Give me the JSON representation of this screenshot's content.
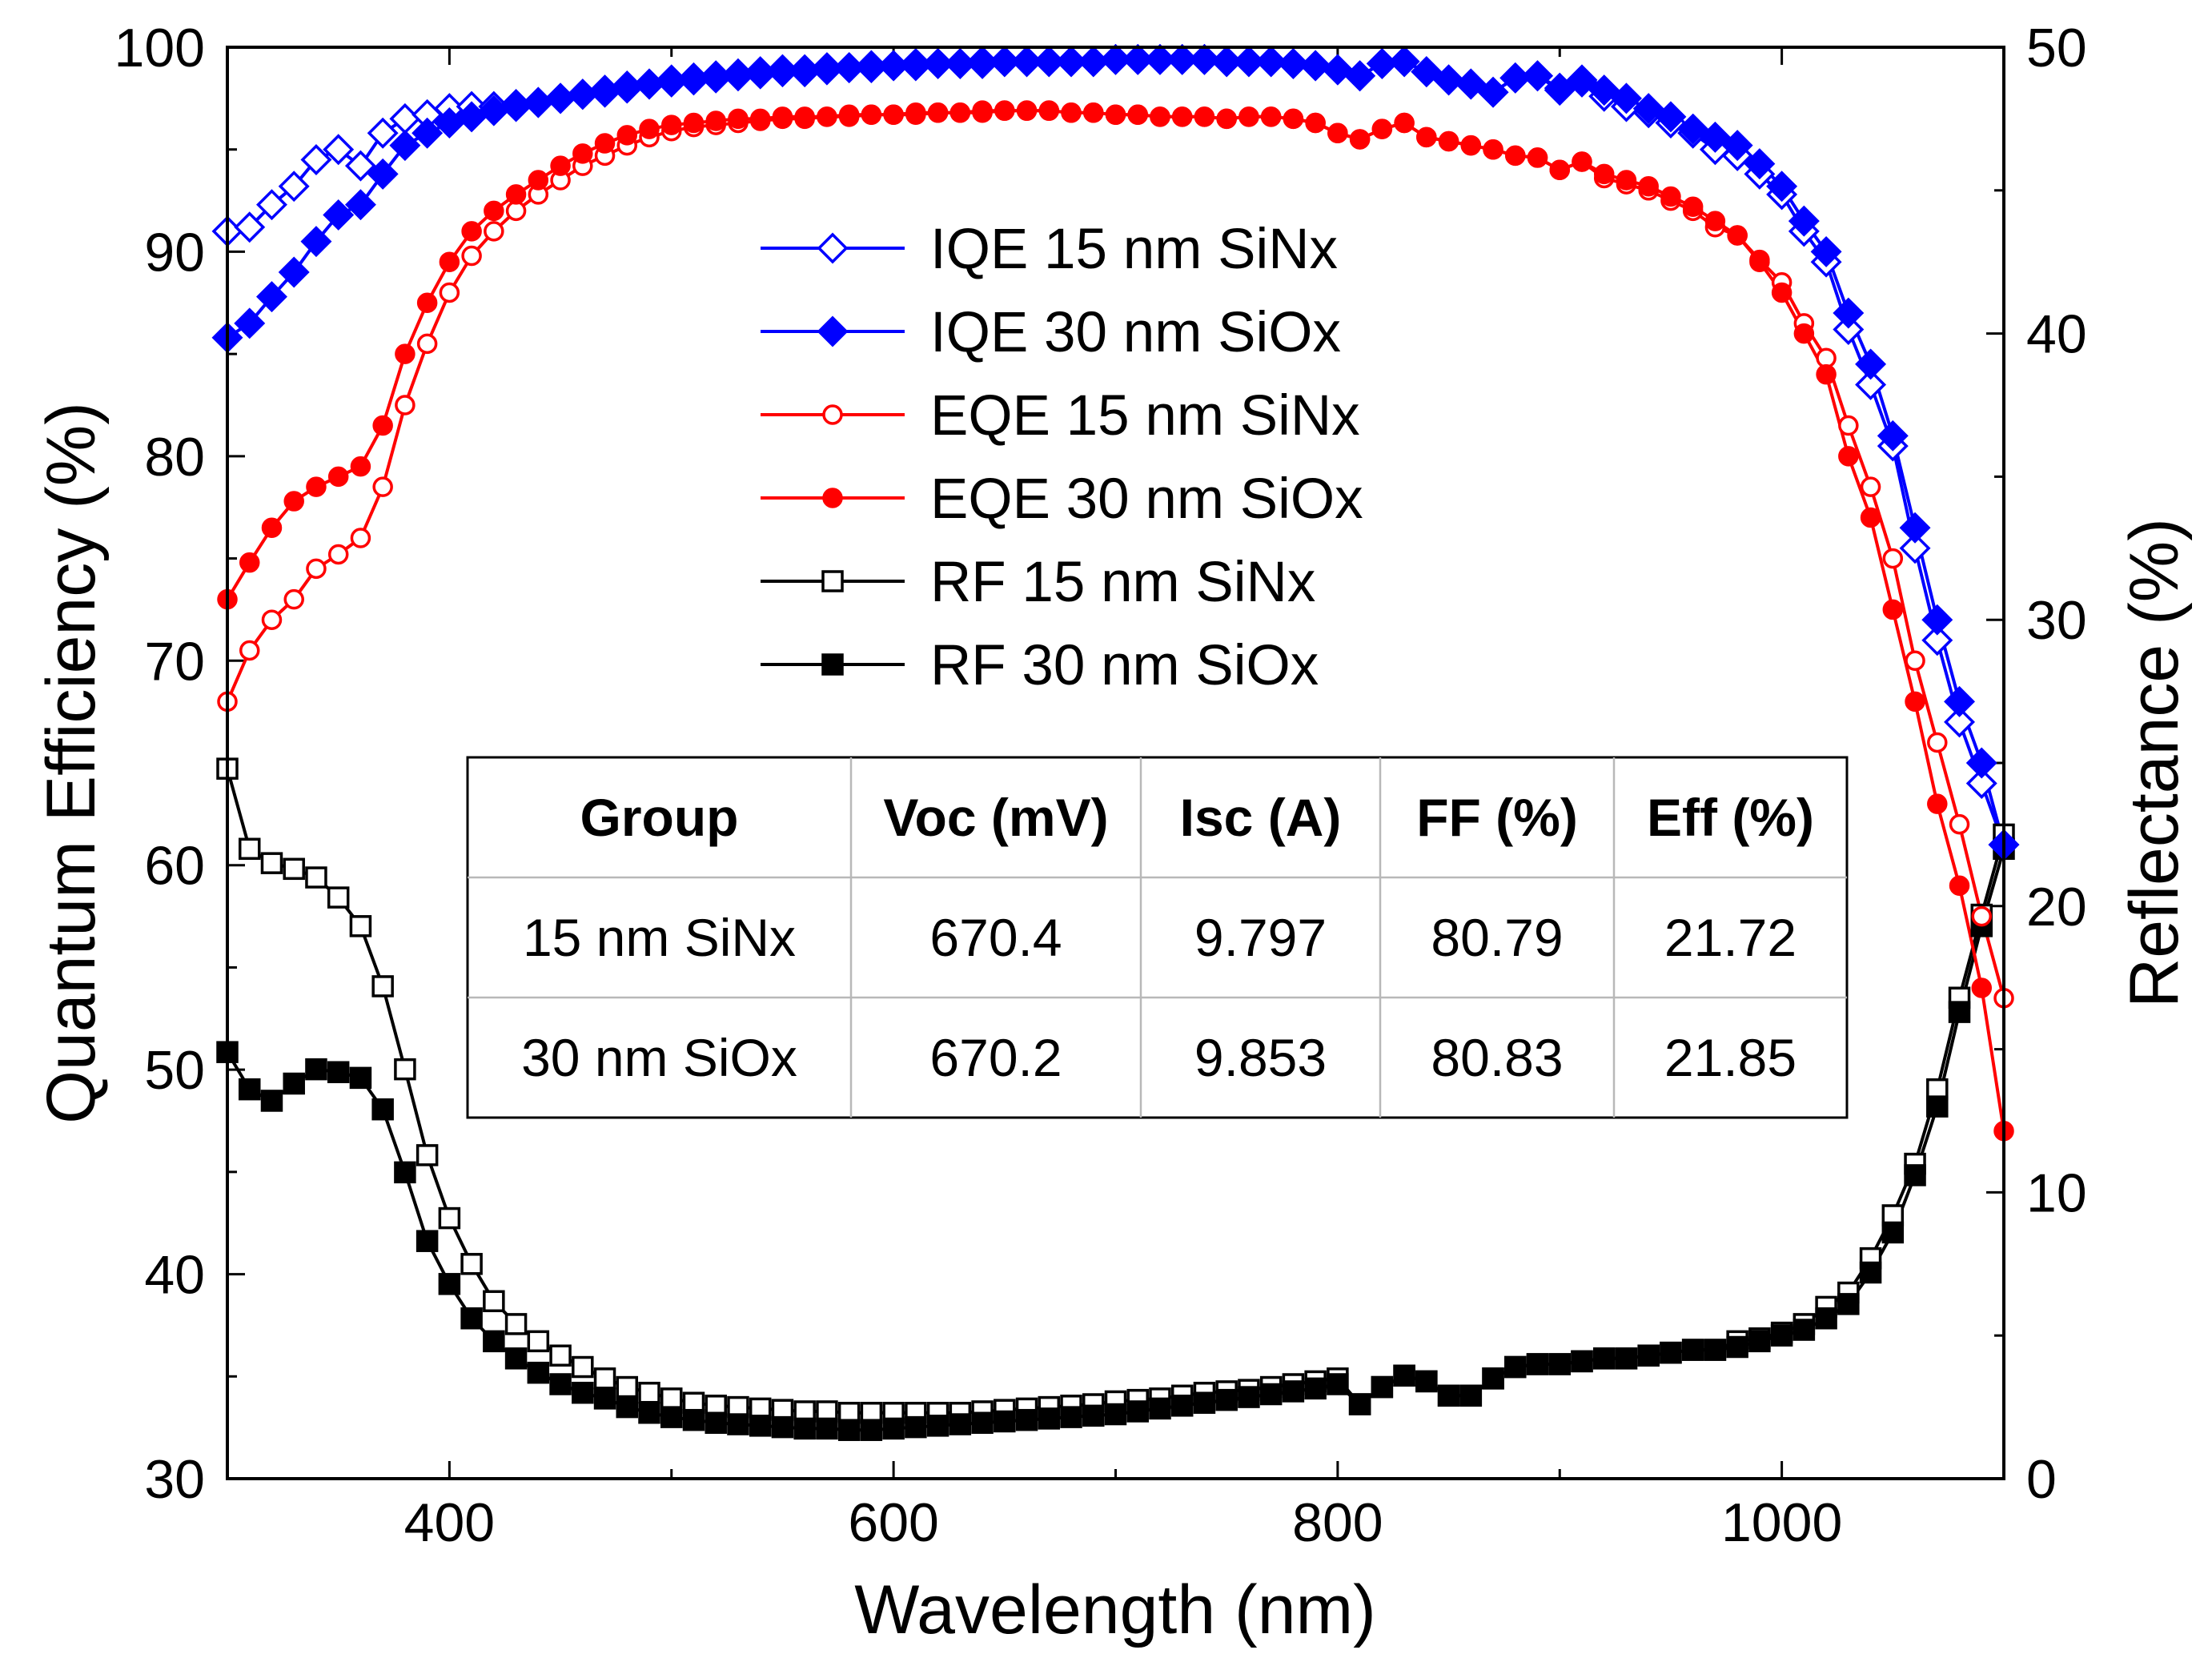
{
  "chart_data": {
    "type": "line",
    "x_axis": {
      "label": "Wavelength (nm)",
      "range": [
        300,
        1100
      ],
      "ticks": [
        400,
        600,
        800,
        1000
      ],
      "tick_labels": [
        "400",
        "600",
        "800",
        "1000"
      ]
    },
    "y_axis_left": {
      "label": "Quantum Efficiency (%)",
      "range": [
        30,
        100
      ],
      "ticks": [
        30,
        40,
        50,
        60,
        70,
        80,
        90,
        100
      ],
      "tick_labels": [
        "30",
        "40",
        "50",
        "60",
        "70",
        "80",
        "90",
        "100"
      ]
    },
    "y_axis_right": {
      "label": "Reflectance (%)",
      "range": [
        0,
        50
      ],
      "ticks": [
        0,
        10,
        20,
        30,
        40,
        50
      ],
      "tick_labels": [
        "0",
        "10",
        "20",
        "30",
        "40",
        "50"
      ]
    },
    "legend": {
      "placement": "top-center",
      "entries": [
        {
          "label": "IQE 15 nm SiNx",
          "series": "iqe_15"
        },
        {
          "label": "IQE 30 nm SiOx",
          "series": "iqe_30"
        },
        {
          "label": "EQE 15 nm SiNx",
          "series": "eqe_15"
        },
        {
          "label": "EQE 30 nm SiOx",
          "series": "eqe_30"
        },
        {
          "label": "RF 15 nm SiNx",
          "series": "rf_15"
        },
        {
          "label": "RF 30 nm SiOx",
          "series": "rf_30"
        }
      ]
    },
    "series": [
      {
        "id": "iqe_15",
        "name": "IQE 15 nm SiNx",
        "axis": "left",
        "color": "#0000ff",
        "marker": "diamond",
        "filled": false,
        "x": [
          300,
          310,
          320,
          330,
          340,
          350,
          360,
          370,
          380,
          390,
          400,
          410,
          420,
          430,
          440,
          450,
          460,
          470,
          480,
          490,
          500,
          510,
          520,
          530,
          540,
          550,
          560,
          570,
          580,
          590,
          600,
          610,
          620,
          630,
          640,
          650,
          660,
          670,
          680,
          690,
          700,
          710,
          720,
          730,
          740,
          750,
          760,
          770,
          780,
          790,
          800,
          810,
          820,
          830,
          840,
          850,
          860,
          870,
          880,
          890,
          900,
          910,
          920,
          930,
          940,
          950,
          960,
          970,
          980,
          990,
          1000,
          1010,
          1020,
          1030,
          1040,
          1050,
          1060,
          1070,
          1080,
          1090,
          1100
        ],
        "y": [
          91.0,
          91.2,
          92.3,
          93.2,
          94.5,
          95.0,
          94.2,
          95.8,
          96.5,
          96.7,
          97.0,
          97.1,
          97.1,
          97.2,
          97.3,
          97.5,
          97.7,
          97.8,
          98.0,
          98.2,
          98.3,
          98.4,
          98.5,
          98.6,
          98.7,
          98.8,
          98.8,
          98.9,
          99.0,
          99.0,
          99.1,
          99.1,
          99.2,
          99.2,
          99.2,
          99.3,
          99.3,
          99.3,
          99.3,
          99.3,
          99.4,
          99.4,
          99.4,
          99.4,
          99.4,
          99.3,
          99.3,
          99.3,
          99.2,
          99.1,
          98.9,
          98.6,
          99.2,
          99.3,
          98.8,
          98.4,
          98.2,
          97.8,
          98.5,
          98.6,
          97.9,
          98.3,
          97.6,
          97.1,
          96.8,
          96.3,
          95.8,
          95.0,
          94.7,
          93.8,
          92.8,
          91.0,
          89.5,
          86.2,
          83.5,
          80.5,
          75.5,
          71.0,
          67.0,
          64.0,
          61.0
        ]
      },
      {
        "id": "iqe_30",
        "name": "IQE 30 nm SiOx",
        "axis": "left",
        "color": "#0000ff",
        "marker": "diamond",
        "filled": true,
        "x": [
          300,
          310,
          320,
          330,
          340,
          350,
          360,
          370,
          380,
          390,
          400,
          410,
          420,
          430,
          440,
          450,
          460,
          470,
          480,
          490,
          500,
          510,
          520,
          530,
          540,
          550,
          560,
          570,
          580,
          590,
          600,
          610,
          620,
          630,
          640,
          650,
          660,
          670,
          680,
          690,
          700,
          710,
          720,
          730,
          740,
          750,
          760,
          770,
          780,
          790,
          800,
          810,
          820,
          830,
          840,
          850,
          860,
          870,
          880,
          890,
          900,
          910,
          920,
          930,
          940,
          950,
          960,
          970,
          980,
          990,
          1000,
          1010,
          1020,
          1030,
          1040,
          1050,
          1060,
          1070,
          1080,
          1090,
          1100
        ],
        "y": [
          85.8,
          86.5,
          87.8,
          89.0,
          90.5,
          91.8,
          92.3,
          93.8,
          95.2,
          95.8,
          96.3,
          96.6,
          96.9,
          97.1,
          97.3,
          97.5,
          97.7,
          97.9,
          98.1,
          98.2,
          98.4,
          98.5,
          98.6,
          98.7,
          98.8,
          98.9,
          98.9,
          99.0,
          99.0,
          99.1,
          99.1,
          99.2,
          99.2,
          99.2,
          99.3,
          99.3,
          99.3,
          99.3,
          99.3,
          99.3,
          99.4,
          99.4,
          99.4,
          99.4,
          99.4,
          99.3,
          99.3,
          99.3,
          99.2,
          99.1,
          98.9,
          98.6,
          99.2,
          99.3,
          98.8,
          98.4,
          98.2,
          97.8,
          98.5,
          98.6,
          98.0,
          98.4,
          97.9,
          97.5,
          97.0,
          96.6,
          96.0,
          95.6,
          95.2,
          94.3,
          93.2,
          91.5,
          90.0,
          87.0,
          84.5,
          81.0,
          76.5,
          72.0,
          68.0,
          65.0,
          61.0
        ]
      },
      {
        "id": "eqe_15",
        "name": "EQE 15 nm SiNx",
        "axis": "left",
        "color": "#ff0000",
        "marker": "circle",
        "filled": false,
        "x": [
          300,
          310,
          320,
          330,
          340,
          350,
          360,
          370,
          380,
          390,
          400,
          410,
          420,
          430,
          440,
          450,
          460,
          470,
          480,
          490,
          500,
          510,
          520,
          530,
          540,
          550,
          560,
          570,
          580,
          590,
          600,
          610,
          620,
          630,
          640,
          650,
          660,
          670,
          680,
          690,
          700,
          710,
          720,
          730,
          740,
          750,
          760,
          770,
          780,
          790,
          800,
          810,
          820,
          830,
          840,
          850,
          860,
          870,
          880,
          890,
          900,
          910,
          920,
          930,
          940,
          950,
          960,
          970,
          980,
          990,
          1000,
          1010,
          1020,
          1030,
          1040,
          1050,
          1060,
          1070,
          1080,
          1090,
          1100
        ],
        "y": [
          68.0,
          70.5,
          72.0,
          73.0,
          74.5,
          75.2,
          76.0,
          78.5,
          82.5,
          85.5,
          88.0,
          89.8,
          91.0,
          92.0,
          92.8,
          93.5,
          94.2,
          94.7,
          95.2,
          95.6,
          95.9,
          96.1,
          96.2,
          96.3,
          96.4,
          96.5,
          96.5,
          96.6,
          96.6,
          96.7,
          96.7,
          96.7,
          96.8,
          96.8,
          96.8,
          96.9,
          96.9,
          96.9,
          96.8,
          96.8,
          96.7,
          96.7,
          96.6,
          96.6,
          96.6,
          96.5,
          96.6,
          96.6,
          96.5,
          96.3,
          95.8,
          95.5,
          96.0,
          96.3,
          95.6,
          95.4,
          95.2,
          95.0,
          94.7,
          94.6,
          94.0,
          94.4,
          93.6,
          93.3,
          93.0,
          92.5,
          92.0,
          91.2,
          90.8,
          89.6,
          88.5,
          86.5,
          84.8,
          81.5,
          78.5,
          75.0,
          70.0,
          66.0,
          62.0,
          57.5,
          53.5
        ]
      },
      {
        "id": "eqe_30",
        "name": "EQE 30 nm SiOx",
        "axis": "left",
        "color": "#ff0000",
        "marker": "circle",
        "filled": true,
        "x": [
          300,
          310,
          320,
          330,
          340,
          350,
          360,
          370,
          380,
          390,
          400,
          410,
          420,
          430,
          440,
          450,
          460,
          470,
          480,
          490,
          500,
          510,
          520,
          530,
          540,
          550,
          560,
          570,
          580,
          590,
          600,
          610,
          620,
          630,
          640,
          650,
          660,
          670,
          680,
          690,
          700,
          710,
          720,
          730,
          740,
          750,
          760,
          770,
          780,
          790,
          800,
          810,
          820,
          830,
          840,
          850,
          860,
          870,
          880,
          890,
          900,
          910,
          920,
          930,
          940,
          950,
          960,
          970,
          980,
          990,
          1000,
          1010,
          1020,
          1030,
          1040,
          1050,
          1060,
          1070,
          1080,
          1090,
          1100
        ],
        "y": [
          73.0,
          74.8,
          76.5,
          77.8,
          78.5,
          79.0,
          79.5,
          81.5,
          85.0,
          87.5,
          89.5,
          91.0,
          92.0,
          92.8,
          93.5,
          94.2,
          94.8,
          95.3,
          95.7,
          96.0,
          96.2,
          96.3,
          96.4,
          96.5,
          96.5,
          96.6,
          96.6,
          96.6,
          96.7,
          96.7,
          96.7,
          96.8,
          96.8,
          96.8,
          96.9,
          96.9,
          96.9,
          96.9,
          96.8,
          96.8,
          96.7,
          96.7,
          96.6,
          96.6,
          96.6,
          96.5,
          96.6,
          96.6,
          96.5,
          96.3,
          95.8,
          95.5,
          96.0,
          96.3,
          95.6,
          95.4,
          95.2,
          95.0,
          94.7,
          94.6,
          94.0,
          94.4,
          93.8,
          93.5,
          93.2,
          92.7,
          92.2,
          91.5,
          90.8,
          89.5,
          88.0,
          86.0,
          84.0,
          80.0,
          77.0,
          72.5,
          68.0,
          63.0,
          59.0,
          54.0,
          47.0
        ]
      },
      {
        "id": "rf_15",
        "name": "RF 15 nm SiNx",
        "axis": "right",
        "color": "#000000",
        "marker": "square",
        "filled": false,
        "x": [
          300,
          310,
          320,
          330,
          340,
          350,
          360,
          370,
          380,
          390,
          400,
          410,
          420,
          430,
          440,
          450,
          460,
          470,
          480,
          490,
          500,
          510,
          520,
          530,
          540,
          550,
          560,
          570,
          580,
          590,
          600,
          610,
          620,
          630,
          640,
          650,
          660,
          670,
          680,
          690,
          700,
          710,
          720,
          730,
          740,
          750,
          760,
          770,
          780,
          790,
          800,
          810,
          820,
          830,
          840,
          850,
          860,
          870,
          880,
          890,
          900,
          910,
          920,
          930,
          940,
          950,
          960,
          970,
          980,
          990,
          1000,
          1010,
          1020,
          1030,
          1040,
          1050,
          1060,
          1070,
          1080,
          1090,
          1100
        ],
        "y": [
          24.8,
          22.0,
          21.5,
          21.3,
          21.0,
          20.3,
          19.3,
          17.2,
          14.3,
          11.3,
          9.1,
          7.5,
          6.2,
          5.4,
          4.8,
          4.3,
          3.9,
          3.5,
          3.2,
          3.0,
          2.8,
          2.65,
          2.55,
          2.5,
          2.45,
          2.4,
          2.35,
          2.35,
          2.3,
          2.3,
          2.3,
          2.3,
          2.3,
          2.3,
          2.35,
          2.4,
          2.45,
          2.5,
          2.55,
          2.6,
          2.7,
          2.75,
          2.8,
          2.9,
          3.0,
          3.05,
          3.1,
          3.2,
          3.3,
          3.4,
          3.5,
          2.6,
          3.2,
          3.6,
          3.4,
          2.9,
          2.9,
          3.5,
          3.9,
          4.0,
          4.0,
          4.1,
          4.2,
          4.2,
          4.3,
          4.4,
          4.5,
          4.5,
          4.8,
          4.9,
          5.1,
          5.4,
          6.0,
          6.5,
          7.7,
          9.2,
          11.0,
          13.6,
          16.8,
          19.7,
          22.5
        ]
      },
      {
        "id": "rf_30",
        "name": "RF 30 nm SiOx",
        "axis": "right",
        "color": "#000000",
        "marker": "square",
        "filled": true,
        "x": [
          300,
          310,
          320,
          330,
          340,
          350,
          360,
          370,
          380,
          390,
          400,
          410,
          420,
          430,
          440,
          450,
          460,
          470,
          480,
          490,
          500,
          510,
          520,
          530,
          540,
          550,
          560,
          570,
          580,
          590,
          600,
          610,
          620,
          630,
          640,
          650,
          660,
          670,
          680,
          690,
          700,
          710,
          720,
          730,
          740,
          750,
          760,
          770,
          780,
          790,
          800,
          810,
          820,
          830,
          840,
          850,
          860,
          870,
          880,
          890,
          900,
          910,
          920,
          930,
          940,
          950,
          960,
          970,
          980,
          990,
          1000,
          1010,
          1020,
          1030,
          1040,
          1050,
          1060,
          1070,
          1080,
          1090,
          1100
        ],
        "y": [
          14.9,
          13.6,
          13.2,
          13.8,
          14.3,
          14.2,
          14.0,
          12.9,
          10.7,
          8.3,
          6.8,
          5.6,
          4.8,
          4.2,
          3.7,
          3.3,
          3.0,
          2.8,
          2.5,
          2.3,
          2.15,
          2.05,
          1.95,
          1.9,
          1.85,
          1.8,
          1.75,
          1.75,
          1.7,
          1.7,
          1.75,
          1.8,
          1.85,
          1.9,
          1.95,
          2.0,
          2.05,
          2.1,
          2.15,
          2.2,
          2.25,
          2.35,
          2.45,
          2.55,
          2.65,
          2.75,
          2.85,
          2.95,
          3.05,
          3.15,
          3.3,
          2.6,
          3.2,
          3.6,
          3.4,
          2.9,
          2.9,
          3.5,
          3.9,
          4.0,
          4.0,
          4.1,
          4.2,
          4.2,
          4.3,
          4.4,
          4.5,
          4.5,
          4.6,
          4.8,
          5.0,
          5.2,
          5.6,
          6.1,
          7.2,
          8.6,
          10.6,
          13.0,
          16.3,
          19.3,
          22.0
        ]
      }
    ],
    "table": {
      "headers": [
        "Group",
        "Voc (mV)",
        "Isc (A)",
        "FF (%)",
        "Eff (%)"
      ],
      "rows": [
        [
          "15 nm SiNx",
          "670.4",
          "9.797",
          "80.79",
          "21.72"
        ],
        [
          "30 nm SiOx",
          "670.2",
          "9.853",
          "80.83",
          "21.85"
        ]
      ]
    }
  }
}
